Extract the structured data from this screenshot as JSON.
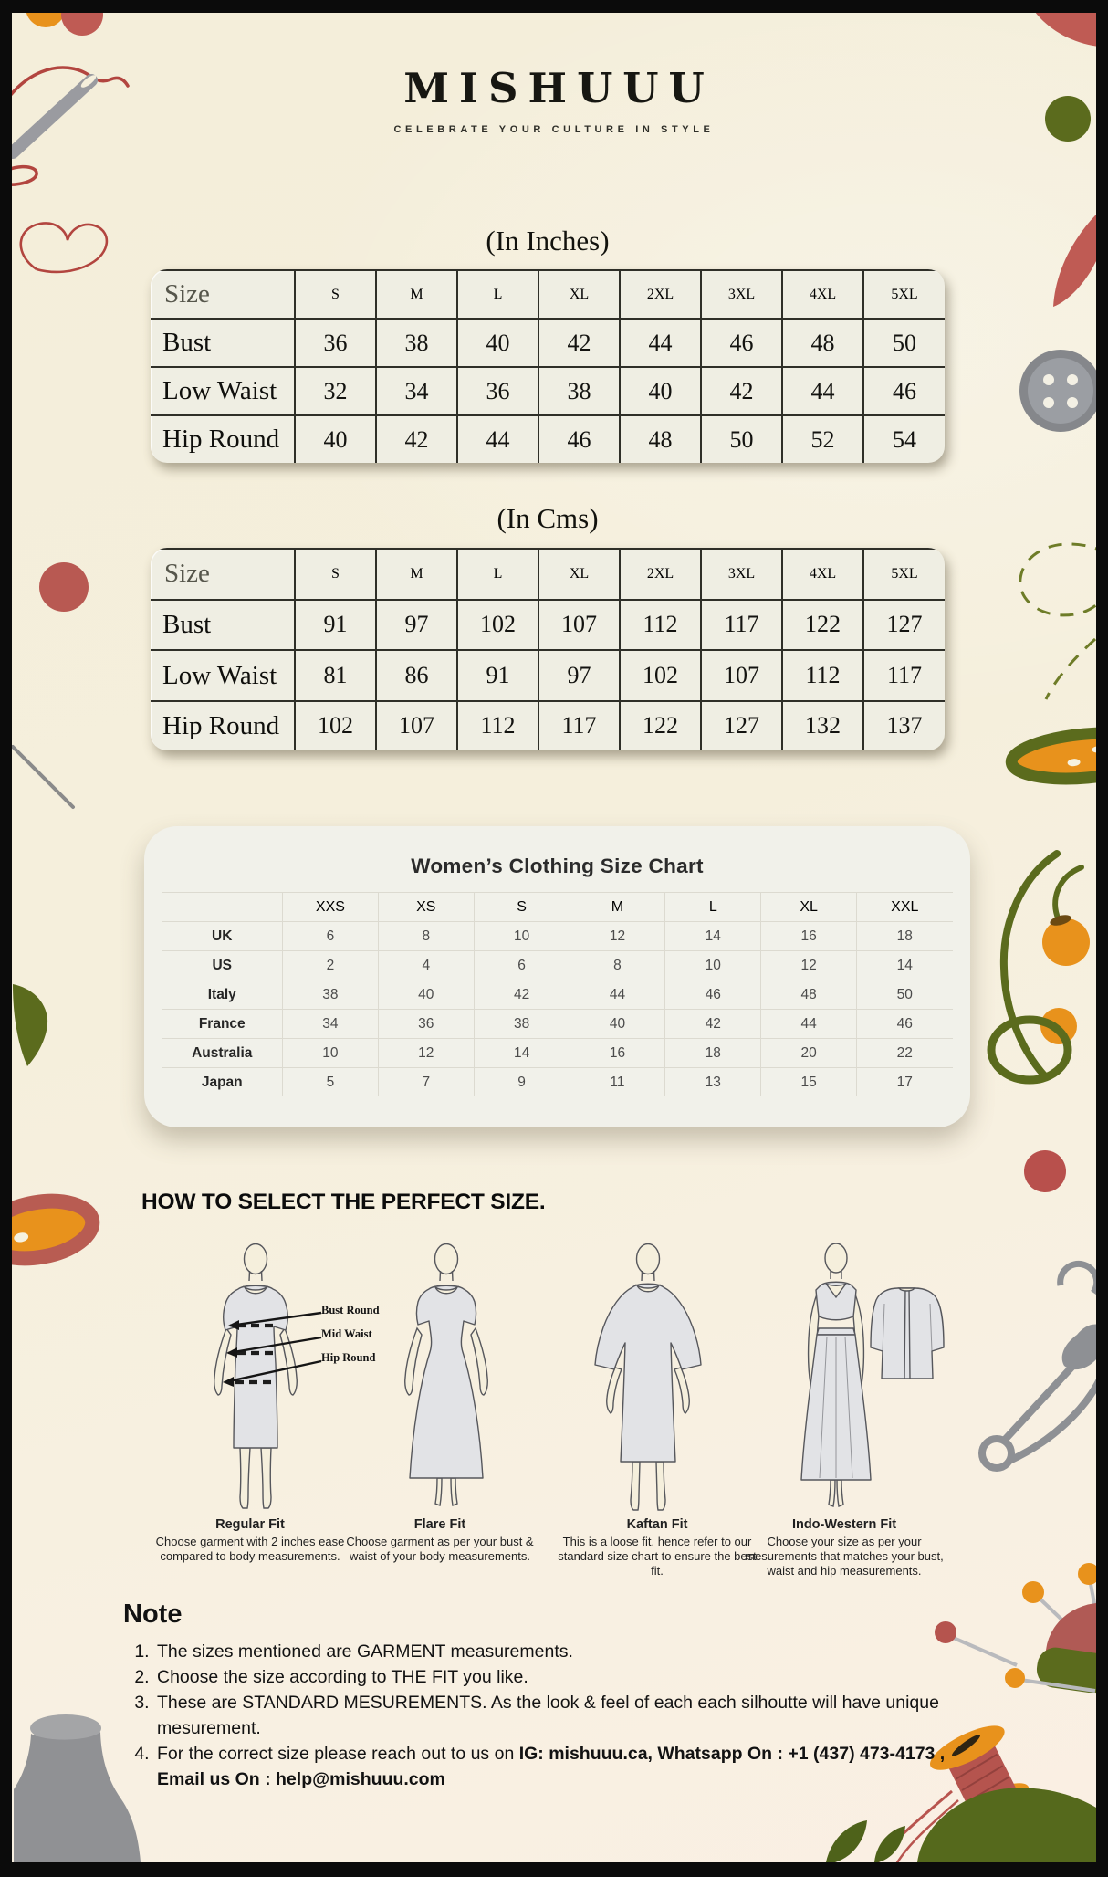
{
  "brand": {
    "name": "MISHUUU",
    "tagline": "CELEBRATE YOUR CULTURE IN STYLE"
  },
  "inches_table": {
    "title": "(In Inches)",
    "corner_label": "Size",
    "columns": [
      "S",
      "M",
      "L",
      "XL",
      "2XL",
      "3XL",
      "4XL",
      "5XL"
    ],
    "rows": [
      {
        "label": "Bust",
        "values": [
          "36",
          "38",
          "40",
          "42",
          "44",
          "46",
          "48",
          "50"
        ]
      },
      {
        "label": "Low Waist",
        "values": [
          "32",
          "34",
          "36",
          "38",
          "40",
          "42",
          "44",
          "46"
        ]
      },
      {
        "label": "Hip Round",
        "values": [
          "40",
          "42",
          "44",
          "46",
          "48",
          "50",
          "52",
          "54"
        ]
      }
    ]
  },
  "cms_table": {
    "title": "(In Cms)",
    "corner_label": "Size",
    "columns": [
      "S",
      "M",
      "L",
      "XL",
      "2XL",
      "3XL",
      "4XL",
      "5XL"
    ],
    "rows": [
      {
        "label": "Bust",
        "values": [
          "91",
          "97",
          "102",
          "107",
          "112",
          "117",
          "122",
          "127"
        ]
      },
      {
        "label": "Low Waist",
        "values": [
          "81",
          "86",
          "91",
          "97",
          "102",
          "107",
          "112",
          "117"
        ]
      },
      {
        "label": "Hip Round",
        "values": [
          "102",
          "107",
          "112",
          "117",
          "122",
          "127",
          "132",
          "137"
        ]
      }
    ]
  },
  "intl_chart": {
    "title": "Women’s Clothing Size Chart",
    "corner_label": "",
    "columns": [
      "XXS",
      "XS",
      "S",
      "M",
      "L",
      "XL",
      "XXL"
    ],
    "rows": [
      {
        "label": "UK",
        "values": [
          "6",
          "8",
          "10",
          "12",
          "14",
          "16",
          "18"
        ]
      },
      {
        "label": "US",
        "values": [
          "2",
          "4",
          "6",
          "8",
          "10",
          "12",
          "14"
        ]
      },
      {
        "label": "Italy",
        "values": [
          "38",
          "40",
          "42",
          "44",
          "46",
          "48",
          "50"
        ]
      },
      {
        "label": "France",
        "values": [
          "34",
          "36",
          "38",
          "40",
          "42",
          "44",
          "46"
        ]
      },
      {
        "label": "Australia",
        "values": [
          "10",
          "12",
          "14",
          "16",
          "18",
          "20",
          "22"
        ]
      },
      {
        "label": "Japan",
        "values": [
          "5",
          "7",
          "9",
          "11",
          "13",
          "15",
          "17"
        ]
      }
    ]
  },
  "fit_section": {
    "heading": "HOW TO SELECT THE PERFECT SIZE.",
    "annotations": [
      "Bust Round",
      "Mid Waist",
      "Hip Round"
    ],
    "fits": [
      {
        "name": "Regular Fit",
        "description": "Choose garment with 2 inches ease compared to body measurements."
      },
      {
        "name": "Flare Fit",
        "description": "Choose garment as per your bust & waist of your body measurements."
      },
      {
        "name": "Kaftan Fit",
        "description": "This is a loose fit, hence refer to our standard size chart to ensure the best fit."
      },
      {
        "name": "Indo-Western Fit",
        "description": "Choose your size as per your mesurements that matches your bust, waist and hip measurements."
      }
    ]
  },
  "note": {
    "heading": "Note",
    "items": [
      {
        "pre": "The sizes mentioned are GARMENT measurements.",
        "bold": ""
      },
      {
        "pre": "Choose the size according to THE FIT you like.",
        "bold": ""
      },
      {
        "pre": "These are STANDARD MESUREMENTS. As the look & feel of each each silhoutte will have unique mesurement.",
        "bold": ""
      },
      {
        "pre": "For the correct size please reach out to us on ",
        "bold": "IG: mishuuu.ca, Whatsapp On : +1 (437) 473-4173 , Email us On : help@mishuuu.com"
      }
    ]
  },
  "decor_icons": [
    "needle-and-thread-icon",
    "heart-thread-icon",
    "button-icon",
    "embroidery-hoop-icon",
    "thread-spool-icon",
    "pin-cushion-icon",
    "pin-icon",
    "safety-pin-icon",
    "mannequin-icon",
    "leaf-icon",
    "dashed-stitch-icon"
  ],
  "colors": {
    "background": "#f5efdc",
    "frame": "#0b0b0b",
    "table_bg": "#efeee3",
    "card_bg": "#f1f1ea",
    "header_bar": "#c6c6c4",
    "dusty_red": "#b85952",
    "olive": "#5b6b1d",
    "orange": "#e8921c",
    "gray": "#8e9094"
  }
}
